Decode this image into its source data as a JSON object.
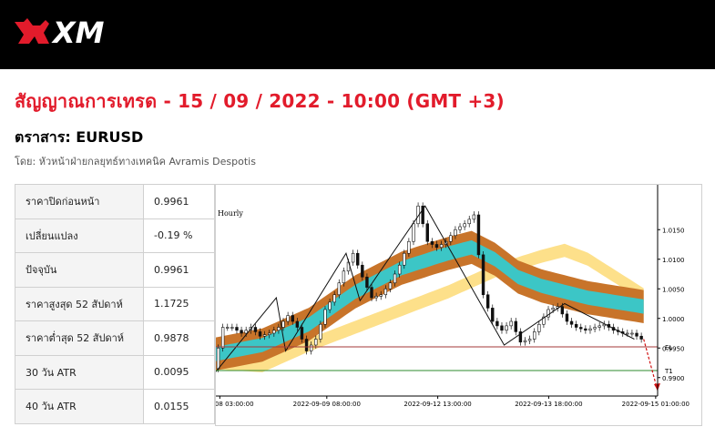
{
  "header": {
    "brand": "XM"
  },
  "signal": {
    "title": "สัญญาณการเทรด - 15 / 09 / 2022 - 10:00 (GMT +3)",
    "instrument": "ตราสาร: EURUSD",
    "author": "โดย: หัวหน้าฝ่ายกลยุทธ์ทางเทคนิค Avramis Despotis"
  },
  "stats": [
    {
      "label": "ราคาปิดก่อนหน้า",
      "value": "0.9961"
    },
    {
      "label": "เปลี่ยนแปลง",
      "value": "-0.19 %"
    },
    {
      "label": "ปัจจุบัน",
      "value": "0.9961"
    },
    {
      "label": "ราคาสูงสุด 52 สัปดาห์",
      "value": "1.1725"
    },
    {
      "label": "ราคาต่ำสุด 52 สัปดาห์",
      "value": "0.9878"
    },
    {
      "label": "30 วัน ATR",
      "value": "0.0095"
    },
    {
      "label": "40 วัน ATR",
      "value": "0.0155"
    }
  ],
  "chart_data": {
    "type": "line",
    "timeframe": "Hourly",
    "x_ticks": [
      "2022-09-08 03:00:00",
      "2022-09-09 08:00:00",
      "2022-09-12 13:00:00",
      "2022-09-13 18:00:00",
      "2022-09-15 01:00:00"
    ],
    "y_ticks": [
      "1.0150",
      "1.0100",
      "1.0050",
      "1.0000",
      "0.9950",
      "0.9900"
    ],
    "ylim": [
      0.9875,
      1.0195
    ],
    "price_path": {
      "x": [
        0,
        2,
        4,
        6,
        8,
        10,
        12,
        14,
        16,
        18,
        20,
        22,
        24,
        26,
        28,
        30,
        32,
        34,
        36,
        38,
        40,
        42,
        44,
        46,
        48,
        50,
        52,
        54,
        56,
        58,
        60,
        62,
        64,
        66,
        68,
        70,
        72,
        74,
        76,
        78,
        80,
        82,
        84,
        86,
        88,
        90,
        92
      ],
      "y": [
        0.9915,
        0.9985,
        0.9985,
        0.9975,
        0.9985,
        0.997,
        0.9975,
        0.9985,
        1.0005,
        0.9985,
        0.9945,
        0.9965,
        1.0015,
        1.004,
        1.008,
        1.011,
        1.007,
        1.0035,
        1.004,
        1.006,
        1.009,
        1.013,
        1.019,
        1.013,
        1.012,
        1.013,
        1.015,
        1.016,
        1.0175,
        1.004,
        0.9995,
        0.998,
        0.9995,
        0.996,
        0.9965,
        0.999,
        1.0015,
        1.002,
        0.9995,
        0.9985,
        0.998,
        0.9985,
        0.999,
        0.998,
        0.9975,
        0.9975,
        0.9965
      ]
    },
    "zigzag": {
      "x": [
        0,
        13,
        15,
        28,
        31,
        45,
        62,
        75,
        90
      ],
      "y": [
        0.991,
        1.0035,
        0.9945,
        1.011,
        1.003,
        1.019,
        0.9955,
        1.0025,
        0.9965
      ]
    },
    "band_mid": {
      "x": [
        0,
        10,
        20,
        30,
        40,
        50,
        55,
        60,
        65,
        70,
        80,
        92
      ],
      "y": [
        0.994,
        0.9955,
        0.999,
        1.0045,
        1.0085,
        1.011,
        1.012,
        1.01,
        1.007,
        1.0055,
        1.0035,
        1.002
      ]
    },
    "yellow_band_mid": {
      "x": [
        0,
        10,
        20,
        30,
        40,
        50,
        60,
        70,
        75,
        80,
        92
      ],
      "y": [
        0.9925,
        0.992,
        0.9955,
        0.9985,
        1.0015,
        1.0045,
        1.008,
        1.0105,
        1.0115,
        1.01,
        1.004
      ]
    },
    "levels": [
      {
        "label": "EL",
        "value": 0.9952,
        "color": "#a33a3a"
      },
      {
        "label": "T1",
        "value": 0.9912,
        "color": "#2e8b2e"
      }
    ],
    "forecast": {
      "x": [
        92,
        95
      ],
      "y": [
        0.9965,
        0.9878
      ]
    },
    "colors": {
      "outer_band": "#c8742a",
      "inner_band": "#3cc6c6",
      "yellow_band": "#fde08a",
      "zigzag": "#111111"
    }
  }
}
